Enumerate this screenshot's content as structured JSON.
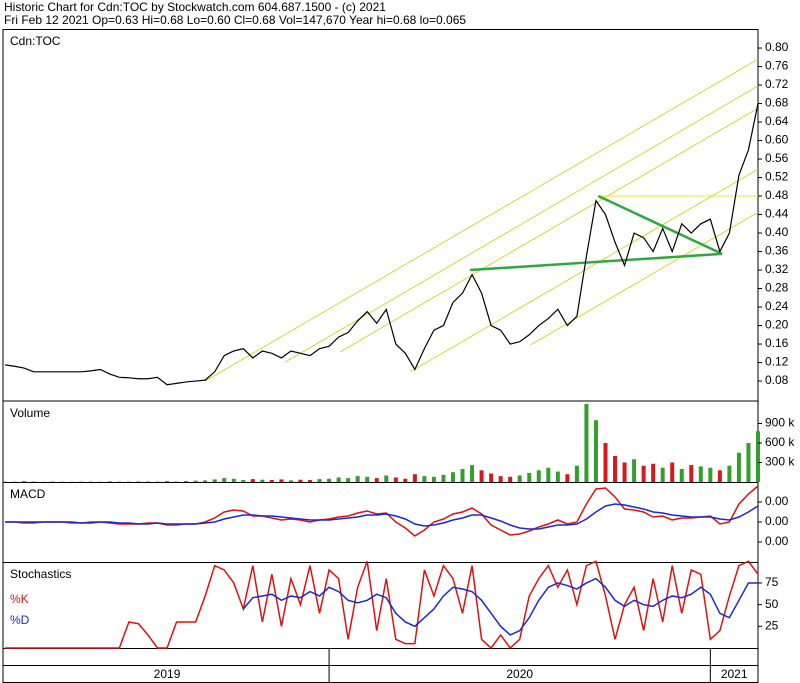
{
  "chart_data": {
    "type": "stock",
    "title": "Historic Chart for Cdn:TOC by Stockwatch.com 604.687.1500 - (c) 2021",
    "subtitle": "Fri Feb 12 2021  Op=0.63  Hi=0.68  Lo=0.60  Cl=0.68  Vol=147,670  Year hi=0.68  lo=0.065",
    "x": [
      2019.15,
      2019.175,
      2019.2,
      2019.225,
      2019.25,
      2019.275,
      2019.3,
      2019.325,
      2019.35,
      2019.375,
      2019.4,
      2019.425,
      2019.45,
      2019.475,
      2019.5,
      2019.525,
      2019.55,
      2019.575,
      2019.6,
      2019.625,
      2019.65,
      2019.675,
      2019.7,
      2019.725,
      2019.75,
      2019.775,
      2019.8,
      2019.825,
      2019.85,
      2019.875,
      2019.9,
      2019.925,
      2019.95,
      2019.975,
      2020,
      2020.025,
      2020.05,
      2020.075,
      2020.1,
      2020.125,
      2020.15,
      2020.175,
      2020.2,
      2020.225,
      2020.25,
      2020.275,
      2020.3,
      2020.325,
      2020.35,
      2020.375,
      2020.4,
      2020.425,
      2020.45,
      2020.475,
      2020.5,
      2020.525,
      2020.55,
      2020.575,
      2020.6,
      2020.625,
      2020.65,
      2020.675,
      2020.7,
      2020.725,
      2020.75,
      2020.775,
      2020.8,
      2020.825,
      2020.85,
      2020.875,
      2020.9,
      2020.925,
      2020.95,
      2020.975,
      2021,
      2021.025,
      2021.05,
      2021.075,
      2021.1,
      2021.125
    ],
    "xlim": [
      2019.15,
      2021.125
    ],
    "xticks": [
      2020,
      2021
    ],
    "x_labels": [
      "2019",
      "2020",
      "2021"
    ],
    "panels": [
      {
        "title": "Cdn:TOC",
        "type": "line",
        "ylim": [
          0.039,
          0.839
        ],
        "yticks": [
          0.08,
          0.12,
          0.16,
          {
            "value": 0.2,
            "label": "0.20"
          },
          0.24,
          0.28,
          0.32,
          0.36,
          {
            "value": 0.4,
            "label": "0.40"
          },
          0.44,
          0.48,
          0.52,
          0.56,
          {
            "value": 0.6,
            "label": "0.60"
          },
          0.64,
          0.68,
          0.72,
          0.76,
          {
            "value": 0.8,
            "label": "0.80"
          }
        ],
        "series": [
          {
            "color": "#000000",
            "values": [
              0.115,
              0.112,
              0.108,
              0.1,
              0.1,
              0.1,
              0.1,
              0.1,
              0.1,
              0.102,
              0.105,
              0.095,
              0.088,
              0.087,
              0.085,
              0.085,
              0.088,
              0.072,
              0.075,
              0.078,
              0.08,
              0.082,
              0.1,
              0.135,
              0.145,
              0.15,
              0.13,
              0.145,
              0.14,
              0.13,
              0.145,
              0.14,
              0.135,
              0.15,
              0.155,
              0.175,
              0.185,
              0.21,
              0.23,
              0.205,
              0.235,
              0.16,
              0.14,
              0.105,
              0.15,
              0.19,
              0.2,
              0.25,
              0.27,
              0.31,
              0.27,
              0.2,
              0.19,
              0.16,
              0.165,
              0.18,
              0.2,
              0.215,
              0.235,
              0.2,
              0.22,
              0.35,
              0.47,
              0.44,
              0.38,
              0.33,
              0.4,
              0.39,
              0.36,
              0.41,
              0.36,
              0.42,
              0.4,
              0.42,
              0.43,
              0.36,
              0.4,
              0.525,
              0.58,
              0.68
            ]
          }
        ],
        "trendlines": [
          {
            "color": "#cddc39",
            "x": [
              2019.675,
              2021.125
            ],
            "y": [
              0.08,
              0.776
            ]
          },
          {
            "color": "#cddc39",
            "x": [
              2019.885,
              2021.125
            ],
            "y": [
              0.121,
              0.718
            ]
          },
          {
            "color": "#cddc39",
            "x": [
              2020.029,
              2021.125
            ],
            "y": [
              0.143,
              0.67
            ]
          },
          {
            "color": "#cddc39",
            "x": [
              2020.213,
              2021.125
            ],
            "y": [
              0.1,
              0.538
            ]
          },
          {
            "color": "#cddc39",
            "x": [
              2020.528,
              2021.125
            ],
            "y": [
              0.158,
              0.445
            ]
          },
          {
            "color": "#e8e82a",
            "x": [
              2020.706,
              2021.125
            ],
            "y": [
              0.48,
              0.48
            ]
          },
          {
            "color": "#2eaa3c",
            "x": [
              2020.37,
              2021.031
            ],
            "y": [
              0.32,
              0.355
            ]
          },
          {
            "color": "#2eaa3c",
            "x": [
              2020.706,
              2021.031
            ],
            "y": [
              0.48,
              0.355
            ]
          }
        ]
      },
      {
        "title": "Volume",
        "type": "bar",
        "ylim": [
          0,
          1230000
        ],
        "yticks": [
          {
            "value": 300000,
            "label": "300 k"
          },
          {
            "value": 600000,
            "label": "600 k"
          },
          {
            "value": 900000,
            "label": "900 k"
          }
        ],
        "up_color": "#33a02c",
        "down_color": "#d7191c",
        "flat_color": "#9e9e9e",
        "series": [
          {
            "values": [
              8000,
              5000,
              12000,
              6000,
              4000,
              10000,
              7000,
              5000,
              9000,
              6000,
              4000,
              8000,
              6000,
              5000,
              7000,
              10000,
              6000,
              12000,
              8000,
              15000,
              20000,
              25000,
              40000,
              60000,
              50000,
              30000,
              45000,
              35000,
              30000,
              40000,
              25000,
              35000,
              30000,
              45000,
              50000,
              70000,
              60000,
              90000,
              80000,
              60000,
              100000,
              70000,
              50000,
              120000,
              90000,
              80000,
              110000,
              150000,
              200000,
              260000,
              180000,
              130000,
              90000,
              80000,
              100000,
              140000,
              180000,
              220000,
              160000,
              120000,
              250000,
              1200000,
              950000,
              600000,
              400000,
              300000,
              350000,
              250000,
              280000,
              220000,
              300000,
              200000,
              260000,
              240000,
              220000,
              180000,
              250000,
              450000,
              600000,
              780000
            ]
          }
        ]
      },
      {
        "title": "MACD",
        "type": "line",
        "ylim": [
          -0.04,
          0.039
        ],
        "yticks": [
          {
            "value": -0.02,
            "label": "0.00"
          },
          {
            "value": 0,
            "label": "0.00"
          },
          {
            "value": 0.02,
            "label": "0.00"
          }
        ],
        "series": [
          {
            "color": "#e01010",
            "values": [
              0,
              0,
              -0.001,
              -0.001,
              0,
              0,
              0,
              -0.001,
              -0.001,
              0,
              0,
              -0.001,
              -0.002,
              -0.002,
              -0.002,
              -0.001,
              -0.001,
              -0.003,
              -0.003,
              -0.002,
              -0.002,
              0,
              0.004,
              0.01,
              0.012,
              0.011,
              0.006,
              0.006,
              0.004,
              0.002,
              0.003,
              0.002,
              0,
              0.002,
              0.003,
              0.005,
              0.006,
              0.009,
              0.011,
              0.008,
              0.009,
              0,
              -0.006,
              -0.014,
              -0.008,
              0,
              0.003,
              0.008,
              0.01,
              0.014,
              0.008,
              -0.003,
              -0.008,
              -0.013,
              -0.012,
              -0.009,
              -0.005,
              -0.002,
              0.002,
              -0.002,
              0,
              0.018,
              0.033,
              0.034,
              0.025,
              0.013,
              0.012,
              0.01,
              0.005,
              0.006,
              0.002,
              0.004,
              0.004,
              0.005,
              0.006,
              -0.002,
              0,
              0.018,
              0.028,
              0.036
            ]
          },
          {
            "color": "#1a2ad0",
            "values": [
              0,
              0,
              0,
              0,
              0,
              0,
              0,
              0,
              -0.001,
              -0.001,
              0,
              0,
              -0.001,
              -0.001,
              -0.002,
              -0.002,
              -0.001,
              -0.002,
              -0.002,
              -0.002,
              -0.002,
              -0.001,
              0,
              0.003,
              0.005,
              0.007,
              0.007,
              0.006,
              0.006,
              0.005,
              0.004,
              0.003,
              0.002,
              0.002,
              0.002,
              0.003,
              0.004,
              0.005,
              0.007,
              0.007,
              0.008,
              0.006,
              0.003,
              -0.002,
              -0.004,
              -0.003,
              -0.001,
              0.002,
              0.004,
              0.007,
              0.007,
              0.004,
              0.001,
              -0.003,
              -0.006,
              -0.007,
              -0.007,
              -0.005,
              -0.003,
              -0.003,
              -0.002,
              0.003,
              0.01,
              0.016,
              0.018,
              0.017,
              0.015,
              0.013,
              0.01,
              0.009,
              0.007,
              0.006,
              0.005,
              0.005,
              0.005,
              0.003,
              0.002,
              0.005,
              0.01,
              0.016
            ]
          }
        ]
      },
      {
        "title": "Stochastics",
        "type": "line",
        "ylim": [
          0,
          98
        ],
        "yticks": [
          25,
          50,
          75
        ],
        "series": [
          {
            "name": "%K",
            "color": "#e01010",
            "values": [
              0,
              0,
              0,
              0,
              0,
              0,
              0,
              0,
              0,
              0,
              0,
              0,
              0,
              30,
              28,
              15,
              0,
              0,
              30,
              30,
              30,
              60,
              95,
              90,
              75,
              45,
              95,
              30,
              85,
              25,
              80,
              50,
              95,
              40,
              90,
              80,
              10,
              70,
              100,
              20,
              80,
              10,
              5,
              5,
              90,
              60,
              95,
              80,
              40,
              95,
              10,
              0,
              15,
              0,
              10,
              60,
              80,
              95,
              70,
              90,
              50,
              95,
              100,
              60,
              10,
              50,
              70,
              20,
              80,
              30,
              95,
              40,
              90,
              85,
              10,
              20,
              60,
              95,
              100,
              85
            ]
          },
          {
            "name": "%D",
            "color": "#1a2ad0",
            "values": [
              null,
              null,
              null,
              null,
              null,
              null,
              null,
              null,
              null,
              null,
              null,
              null,
              null,
              null,
              null,
              null,
              null,
              null,
              null,
              null,
              null,
              null,
              null,
              null,
              null,
              45,
              58,
              60,
              62,
              55,
              60,
              58,
              65,
              60,
              70,
              65,
              55,
              52,
              55,
              62,
              58,
              40,
              30,
              25,
              35,
              45,
              60,
              70,
              68,
              65,
              55,
              40,
              25,
              15,
              20,
              35,
              55,
              70,
              75,
              72,
              68,
              75,
              80,
              70,
              55,
              48,
              55,
              50,
              48,
              55,
              60,
              58,
              62,
              70,
              62,
              40,
              35,
              55,
              75,
              75
            ]
          }
        ]
      }
    ]
  }
}
